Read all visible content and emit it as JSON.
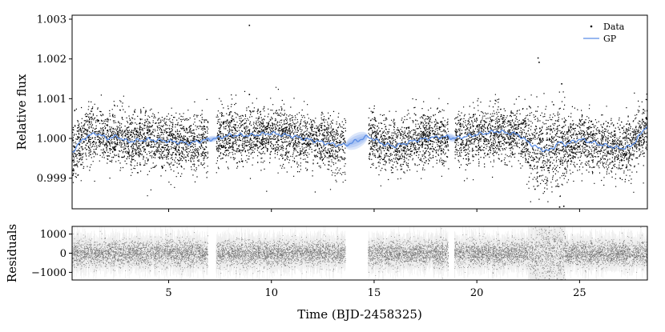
{
  "chart_data": [
    {
      "type": "scatter",
      "ylabel": "Relative flux",
      "xlim": [
        0.3,
        28.3
      ],
      "ylim": [
        0.99823,
        1.0031
      ],
      "yticks": [
        0.999,
        1.0,
        1.001,
        1.002,
        1.003
      ],
      "ytick_labels": [
        "0.999",
        "1.000",
        "1.001",
        "1.002",
        "1.003"
      ],
      "xticks": [
        5,
        10,
        15,
        20,
        25
      ],
      "legend": {
        "placement": "top-right",
        "entries": [
          {
            "label": "Data",
            "marker": "point",
            "color": "#000000"
          },
          {
            "label": "GP",
            "marker": "line",
            "color": "#5b8ee6"
          }
        ]
      },
      "data_segments": [
        [
          0.3,
          6.9
        ],
        [
          7.3,
          13.6
        ],
        [
          14.7,
          18.6
        ],
        [
          18.9,
          28.3
        ]
      ],
      "gp_curve": {
        "x": [
          0.3,
          0.6,
          1.0,
          1.5,
          2.0,
          2.5,
          3.0,
          4.0,
          5.0,
          6.0,
          6.9,
          7.3,
          8.0,
          9.0,
          10.0,
          11.0,
          12.0,
          13.0,
          13.6,
          14.2,
          14.7,
          15.5,
          16.0,
          17.0,
          18.0,
          18.6,
          18.9,
          20.0,
          21.0,
          22.0,
          22.5,
          23.0,
          23.5,
          24.0,
          24.3,
          24.6,
          25.0,
          26.0,
          27.0,
          27.5,
          28.0,
          28.3
        ],
        "y": [
          0.99965,
          0.99985,
          1.00005,
          1.00013,
          1.0,
          1.00005,
          0.99992,
          0.99997,
          0.99993,
          0.99988,
          0.99997,
          1.0,
          1.00008,
          1.00008,
          1.00013,
          1.00006,
          0.99995,
          0.99985,
          0.99983,
          0.99995,
          1.00005,
          0.99985,
          0.9998,
          0.99995,
          1.00003,
          1.00004,
          1.0,
          1.0001,
          1.00018,
          1.0001,
          0.9999,
          0.99975,
          0.99968,
          0.9999,
          0.99985,
          0.9999,
          0.99998,
          0.99985,
          0.99975,
          0.9998,
          1.00012,
          1.00035
        ]
      },
      "gp_uncertainty_bands": [
        {
          "center": 7.1,
          "half_width": 0.3,
          "sigma": 4e-05
        },
        {
          "center": 14.15,
          "half_width": 0.55,
          "sigma": 0.0001
        },
        {
          "center": 18.75,
          "half_width": 0.25,
          "sigma": 5e-05
        }
      ],
      "outliers": [
        {
          "x": 8.9,
          "y": 1.00286
        },
        {
          "x": 22.95,
          "y": 1.00204
        },
        {
          "x": 23.0,
          "y": 1.00193
        },
        {
          "x": 24.0,
          "y": 0.99829
        },
        {
          "x": 24.2,
          "y": 0.99831
        },
        {
          "x": 24.1,
          "y": 1.00139
        },
        {
          "x": 22.8,
          "y": 0.99874
        },
        {
          "x": 8.9,
          "y": 1.00112
        }
      ],
      "scatter_sigma": 0.00035
    },
    {
      "type": "scatter",
      "xlabel": "Time (BJD-2458325)",
      "ylabel": "Residuals",
      "xlim": [
        0.3,
        28.3
      ],
      "ylim": [
        -1400,
        1400
      ],
      "yticks": [
        -1000,
        0,
        1000
      ],
      "ytick_labels": [
        "−1000",
        "0",
        "1000"
      ],
      "xticks": [
        5,
        10,
        15,
        20,
        25
      ],
      "xtick_labels": [
        "5",
        "10",
        "15",
        "20",
        "25"
      ],
      "data_segments": [
        [
          0.3,
          6.9
        ],
        [
          7.3,
          13.6
        ],
        [
          14.7,
          18.6
        ],
        [
          18.9,
          28.3
        ]
      ],
      "noisy_interval": [
        22.5,
        24.3
      ]
    }
  ]
}
